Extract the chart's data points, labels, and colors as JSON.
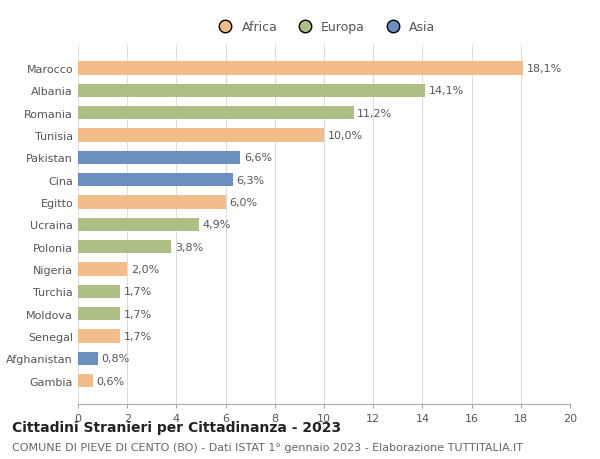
{
  "countries": [
    "Marocco",
    "Albania",
    "Romania",
    "Tunisia",
    "Pakistan",
    "Cina",
    "Egitto",
    "Ucraina",
    "Polonia",
    "Nigeria",
    "Turchia",
    "Moldova",
    "Senegal",
    "Afghanistan",
    "Gambia"
  ],
  "values": [
    18.1,
    14.1,
    11.2,
    10.0,
    6.6,
    6.3,
    6.0,
    4.9,
    3.8,
    2.0,
    1.7,
    1.7,
    1.7,
    0.8,
    0.6
  ],
  "labels": [
    "18,1%",
    "14,1%",
    "11,2%",
    "10,0%",
    "6,6%",
    "6,3%",
    "6,0%",
    "4,9%",
    "3,8%",
    "2,0%",
    "1,7%",
    "1,7%",
    "1,7%",
    "0,8%",
    "0,6%"
  ],
  "continents": [
    "Africa",
    "Europa",
    "Europa",
    "Africa",
    "Asia",
    "Asia",
    "Africa",
    "Europa",
    "Europa",
    "Africa",
    "Europa",
    "Europa",
    "Africa",
    "Asia",
    "Africa"
  ],
  "colors": {
    "Africa": "#F2BC8B",
    "Europa": "#ADBF85",
    "Asia": "#6B8FBF"
  },
  "xlim": [
    0,
    20
  ],
  "xticks": [
    0,
    2,
    4,
    6,
    8,
    10,
    12,
    14,
    16,
    18,
    20
  ],
  "title": "Cittadini Stranieri per Cittadinanza - 2023",
  "subtitle": "COMUNE DI PIEVE DI CENTO (BO) - Dati ISTAT 1° gennaio 2023 - Elaborazione TUTTITALIA.IT",
  "background_color": "#ffffff",
  "grid_color": "#dddddd",
  "title_fontsize": 10,
  "subtitle_fontsize": 8,
  "label_fontsize": 8,
  "tick_fontsize": 8,
  "legend_fontsize": 9,
  "bar_height": 0.6
}
